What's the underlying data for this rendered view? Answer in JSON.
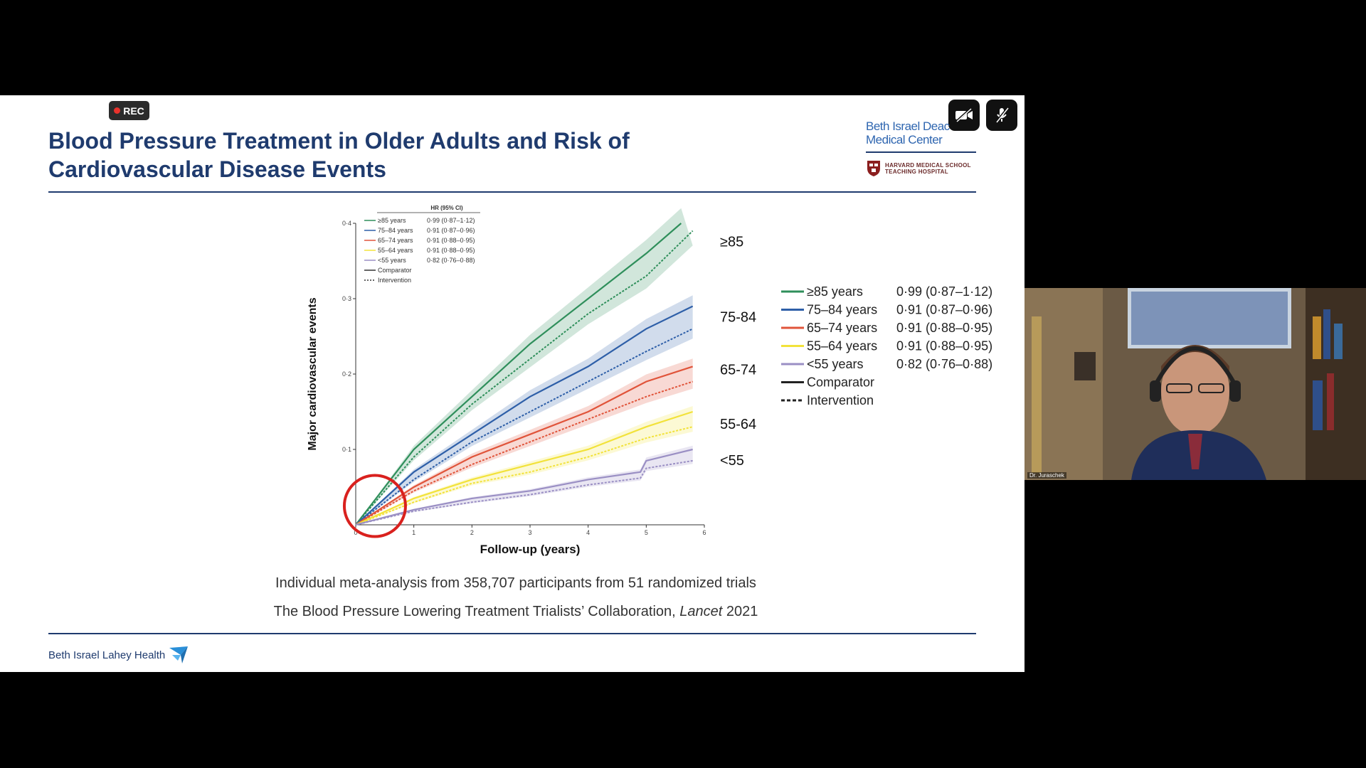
{
  "recording": {
    "label": "REC"
  },
  "slide": {
    "title_line1": "Blood Pressure Treatment in Older Adults and Risk of",
    "title_line2": "Cardiovascular Disease Events",
    "org_line1": "Beth Israel Deac",
    "org_line2": "Medical Center",
    "affiliation_line1": "HARVARD MEDICAL SCHOOL",
    "affiliation_line2": "TEACHING HOSPITAL",
    "caption1": "Individual meta-analysis from 358,707 participants from 51 randomized trials",
    "caption2_prefix": "The Blood Pressure Lowering Treatment Trialists’ Collaboration, ",
    "caption2_journal": "Lancet",
    "caption2_year": " 2021",
    "footer": "Beth Israel Lahey Health"
  },
  "participant": {
    "name": "Dr. Juraschek"
  },
  "colors": {
    "title": "#1f3b6e",
    "rec_dot": "#e8322c",
    "highlight_circle": "#d9211e"
  },
  "chart_data": {
    "type": "line",
    "xlabel": "Follow-up (years)",
    "ylabel": "Major cardiovascular events",
    "xlim": [
      0,
      6
    ],
    "ylim": [
      0,
      0.4
    ],
    "xticks": [
      "0",
      "1",
      "2",
      "3",
      "4",
      "5",
      "6"
    ],
    "yticks": [
      "0·1",
      "0·2",
      "0·3",
      "0·4"
    ],
    "inner_legend_header": "HR (95% CI)",
    "inner_legend": [
      {
        "label": "≥85 years",
        "hr": "0·99 (0·87–1·12)",
        "color": "#2f8f5b"
      },
      {
        "label": "75–84 years",
        "hr": "0·91 (0·87–0·96)",
        "color": "#2e5fa8"
      },
      {
        "label": "65–74 years",
        "hr": "0·91 (0·88–0·95)",
        "color": "#e0543a"
      },
      {
        "label": "55–64 years",
        "hr": "0·91 (0·88–0·95)",
        "color": "#f2e23a"
      },
      {
        "label": "<55 years",
        "hr": "0·82 (0·76–0·88)",
        "color": "#9a8fc4"
      },
      {
        "label": "Comparator",
        "hr": "",
        "color": "#333333"
      },
      {
        "label": "Intervention",
        "hr": "",
        "color": "#333333"
      }
    ],
    "group_labels": [
      "≥85",
      "75-84",
      "65-74",
      "55-64",
      "<55"
    ],
    "series": [
      {
        "name": "≥85 years",
        "color": "#2f8f5b",
        "comparator": {
          "x": [
            0,
            1,
            2,
            3,
            4,
            5,
            5.6
          ],
          "y": [
            0,
            0.1,
            0.17,
            0.24,
            0.3,
            0.36,
            0.4
          ]
        },
        "intervention": {
          "x": [
            0,
            1,
            2,
            3,
            4,
            5,
            5.8
          ],
          "y": [
            0,
            0.09,
            0.16,
            0.22,
            0.28,
            0.33,
            0.39
          ]
        }
      },
      {
        "name": "75–84 years",
        "color": "#2e5fa8",
        "comparator": {
          "x": [
            0,
            1,
            2,
            3,
            4,
            5,
            5.8
          ],
          "y": [
            0,
            0.07,
            0.12,
            0.17,
            0.21,
            0.26,
            0.29
          ]
        },
        "intervention": {
          "x": [
            0,
            1,
            2,
            3,
            4,
            5,
            5.8
          ],
          "y": [
            0,
            0.06,
            0.11,
            0.15,
            0.19,
            0.23,
            0.26
          ]
        }
      },
      {
        "name": "65–74 years",
        "color": "#e0543a",
        "comparator": {
          "x": [
            0,
            1,
            2,
            3,
            4,
            5,
            5.8
          ],
          "y": [
            0,
            0.05,
            0.09,
            0.12,
            0.15,
            0.19,
            0.21
          ]
        },
        "intervention": {
          "x": [
            0,
            1,
            2,
            3,
            4,
            5,
            5.8
          ],
          "y": [
            0,
            0.045,
            0.08,
            0.11,
            0.14,
            0.17,
            0.19
          ]
        }
      },
      {
        "name": "55–64 years",
        "color": "#f2e23a",
        "comparator": {
          "x": [
            0,
            1,
            2,
            3,
            4,
            5,
            5.8
          ],
          "y": [
            0,
            0.035,
            0.06,
            0.08,
            0.1,
            0.13,
            0.15
          ]
        },
        "intervention": {
          "x": [
            0,
            1,
            2,
            3,
            4,
            5,
            5.8
          ],
          "y": [
            0,
            0.03,
            0.055,
            0.07,
            0.09,
            0.115,
            0.13
          ]
        }
      },
      {
        "name": "<55 years",
        "color": "#9a8fc4",
        "comparator": {
          "x": [
            0,
            1,
            2,
            3,
            4,
            4.9,
            5,
            5.8
          ],
          "y": [
            0,
            0.02,
            0.035,
            0.045,
            0.06,
            0.07,
            0.085,
            0.1
          ]
        },
        "intervention": {
          "x": [
            0,
            1,
            2,
            3,
            4,
            4.9,
            5,
            5.8
          ],
          "y": [
            0,
            0.018,
            0.03,
            0.04,
            0.053,
            0.062,
            0.075,
            0.085
          ]
        }
      }
    ],
    "right_legend": [
      {
        "label": "≥85 years",
        "hr": "0·99 (0·87–1·12)",
        "color": "#2f8f5b"
      },
      {
        "label": "75–84 years",
        "hr": "0·91 (0·87–0·96)",
        "color": "#2e5fa8"
      },
      {
        "label": "65–74 years",
        "hr": "0·91 (0·88–0·95)",
        "color": "#e0543a"
      },
      {
        "label": "55–64 years",
        "hr": "0·91 (0·88–0·95)",
        "color": "#f2e23a"
      },
      {
        "label": "<55 years",
        "hr": "0·82 (0·76–0·88)",
        "color": "#9a8fc4"
      },
      {
        "label": "Comparator",
        "hr": "",
        "color": "#222222"
      },
      {
        "label": "Intervention",
        "hr": "",
        "color": "#222222"
      }
    ]
  }
}
